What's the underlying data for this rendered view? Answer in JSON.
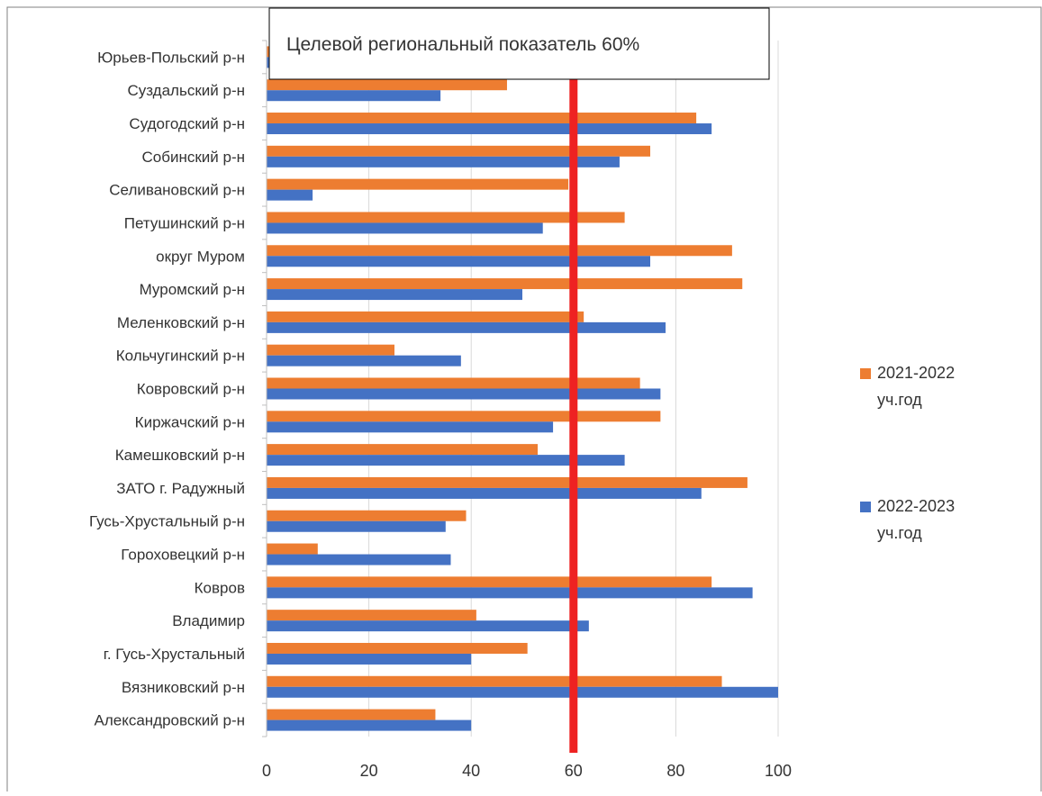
{
  "chart_data": {
    "type": "bar",
    "orientation": "horizontal",
    "title": "",
    "xlabel": "",
    "ylabel": "",
    "xlim": [
      0,
      100
    ],
    "x_ticks": [
      "0",
      "20",
      "40",
      "60",
      "80",
      "100"
    ],
    "grid": "vertical",
    "legend_position": "right",
    "categories": [
      "Юрьев-Польский  р-н",
      "Суздальский р-н",
      "Судогодский р-н",
      "Собинский р-н",
      "Селивановский р-н",
      "Петушинский р-н",
      "округ Муром",
      "Муромский р-н",
      "Меленковский  р-н",
      "Кольчугинский р-н",
      "Ковровский р-н",
      "Киржачский р-н",
      "Камешковский  р-н",
      "ЗАТО г. Радужный",
      "Гусь-Хрустальный р-н",
      "Гороховецкий р-н",
      "Ковров",
      "Владимир",
      "г. Гусь-Хрустальный",
      "Вязниковский р-н",
      "Александровский  р-н"
    ],
    "series": [
      {
        "name": "2021-2022 уч.год",
        "legend_line1": "2021-2022",
        "legend_line2": "уч.год",
        "color": "#ED7D31",
        "values": [
          1,
          47,
          84,
          75,
          59,
          70,
          91,
          93,
          62,
          25,
          73,
          77,
          53,
          94,
          39,
          10,
          87,
          41,
          51,
          89,
          33
        ]
      },
      {
        "name": "2022-2023 уч.год",
        "legend_line1": "2022-2023",
        "legend_line2": "уч.год",
        "color": "#4472C4",
        "values": [
          0.5,
          34,
          87,
          69,
          9,
          54,
          75,
          50,
          78,
          38,
          77,
          56,
          70,
          85,
          35,
          36,
          95,
          63,
          40,
          100,
          40
        ]
      }
    ],
    "reference_line": {
      "value": 60,
      "color": "#EE2222",
      "label": "Целевой региональный показатель 60%"
    }
  }
}
